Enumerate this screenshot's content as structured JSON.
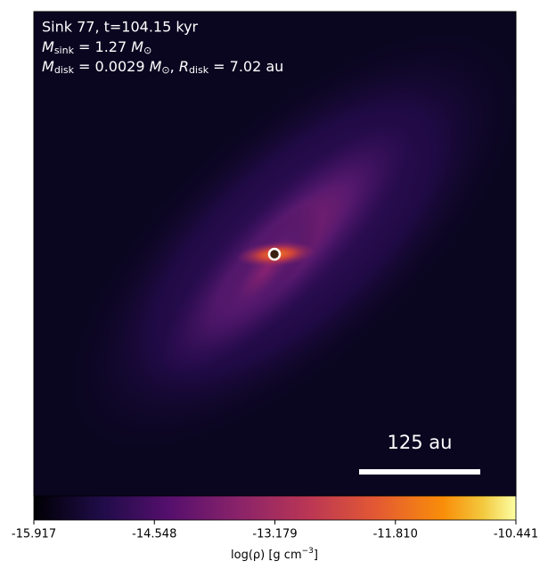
{
  "chart_data": {
    "type": "image",
    "title": "Sink 77, t=104.15 kyr",
    "sink_mass_line": [
      "M",
      "sink",
      " = 1.27 ",
      "M",
      "⊙"
    ],
    "disk_line": [
      "M",
      "disk",
      " = 0.0029 ",
      "M",
      "⊙",
      ", ",
      "R",
      "disk",
      " = 7.02 au"
    ],
    "scale_bar_label": "125 au",
    "colorbar_label": [
      "log(ρ) [g cm",
      "−3",
      "]"
    ],
    "clim": [
      -15.917,
      -10.441
    ],
    "cticks": [
      -15.917,
      -14.548,
      -13.179,
      {
        "value": -11.81,
        "label": "-11.810"
      },
      -10.441
    ]
  }
}
